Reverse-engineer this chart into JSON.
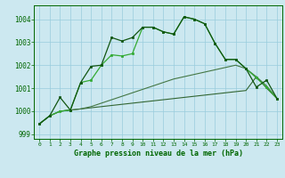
{
  "title": "Graphe pression niveau de la mer (hPa)",
  "background_color": "#cce8f0",
  "grid_color": "#99ccdd",
  "text_color": "#006600",
  "xlim": [
    -0.5,
    23.5
  ],
  "ylim": [
    998.8,
    1004.6
  ],
  "yticks": [
    999,
    1000,
    1001,
    1002,
    1003,
    1004
  ],
  "xticks": [
    0,
    1,
    2,
    3,
    4,
    5,
    6,
    7,
    8,
    9,
    10,
    11,
    12,
    13,
    14,
    15,
    16,
    17,
    18,
    19,
    20,
    21,
    22,
    23
  ],
  "wavy1_y": [
    999.45,
    999.8,
    1000.0,
    1000.05,
    1001.25,
    1001.35,
    1002.0,
    1002.45,
    1002.4,
    1002.5,
    1003.65,
    1003.65,
    1003.45,
    1003.35,
    1004.1,
    1004.0,
    1003.8,
    1002.95,
    1002.25,
    1002.25,
    1001.85,
    1001.45,
    1001.05,
    1000.55
  ],
  "wavy2_y": [
    999.45,
    999.8,
    1000.6,
    1000.05,
    1001.25,
    1001.95,
    1002.0,
    1003.2,
    1003.05,
    1003.2,
    1003.65,
    1003.65,
    1003.45,
    1003.35,
    1004.1,
    1004.0,
    1003.8,
    1002.95,
    1002.25,
    1002.25,
    1001.85,
    1001.05,
    1001.35,
    1000.55
  ],
  "flat1_y": [
    999.45,
    999.8,
    1000.0,
    1000.05,
    1000.1,
    1000.15,
    1000.2,
    1000.25,
    1000.3,
    1000.35,
    1000.4,
    1000.45,
    1000.5,
    1000.55,
    1000.6,
    1000.65,
    1000.7,
    1000.75,
    1000.8,
    1000.85,
    1000.9,
    1001.5,
    1001.0,
    1000.55
  ],
  "flat2_y": [
    999.45,
    999.8,
    1000.0,
    1000.05,
    1000.1,
    1000.2,
    1000.35,
    1000.5,
    1000.65,
    1000.8,
    1000.95,
    1001.1,
    1001.25,
    1001.4,
    1001.5,
    1001.6,
    1001.7,
    1001.8,
    1001.9,
    1002.0,
    1001.85,
    1001.5,
    1001.1,
    1000.55
  ]
}
